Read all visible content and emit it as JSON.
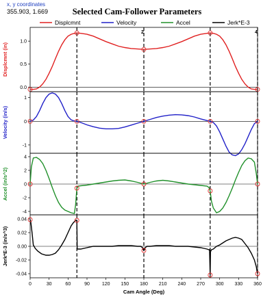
{
  "header": {
    "coord_label": "x, y coordinates",
    "coord_value": "355.903, 1.669"
  },
  "chart_data": {
    "type": "line",
    "title": "Selected Cam-Follower Parameters",
    "xlabel": "Cam Angle (Deg)",
    "xlim": [
      0,
      360
    ],
    "xticks": [
      0,
      30,
      60,
      90,
      120,
      150,
      180,
      210,
      240,
      270,
      300,
      330,
      360
    ],
    "grid": false,
    "legend_placement": "top",
    "stage_markers": [
      {
        "x": 74,
        "label": ""
      },
      {
        "x": 180,
        "label": "2"
      },
      {
        "x": 285,
        "label": ""
      },
      {
        "x": 360,
        "label": "4"
      }
    ],
    "legend": [
      {
        "name": "Displcmnt",
        "color": "#e02020"
      },
      {
        "name": "Velocity",
        "color": "#2020c8"
      },
      {
        "name": "Accel",
        "color": "#20902a"
      },
      {
        "name": "Jerk*E-3",
        "color": "#000000"
      }
    ],
    "panels": [
      {
        "ylabel": "Displcmnt (in)",
        "color": "#e02020",
        "ylim": [
          -0.1,
          1.3
        ],
        "yticks": [
          0.0,
          0.5,
          1.0
        ],
        "ytick_labels": [
          "0.0",
          "0.5",
          "1.0"
        ],
        "x": [
          0,
          5,
          10,
          15,
          20,
          25,
          30,
          35,
          40,
          45,
          50,
          55,
          60,
          65,
          70,
          74,
          80,
          90,
          100,
          110,
          120,
          130,
          140,
          150,
          160,
          170,
          180,
          190,
          200,
          210,
          220,
          230,
          240,
          250,
          260,
          270,
          280,
          285,
          290,
          295,
          300,
          305,
          310,
          315,
          320,
          325,
          330,
          335,
          340,
          345,
          350,
          355,
          360
        ],
        "y": [
          -0.05,
          -0.05,
          -0.04,
          0.0,
          0.07,
          0.17,
          0.3,
          0.45,
          0.62,
          0.78,
          0.92,
          1.03,
          1.11,
          1.15,
          1.17,
          1.18,
          1.17,
          1.15,
          1.11,
          1.05,
          0.99,
          0.94,
          0.89,
          0.86,
          0.84,
          0.83,
          0.82,
          0.83,
          0.84,
          0.86,
          0.89,
          0.94,
          0.99,
          1.05,
          1.11,
          1.15,
          1.17,
          1.18,
          1.17,
          1.15,
          1.11,
          1.03,
          0.92,
          0.78,
          0.62,
          0.45,
          0.3,
          0.17,
          0.07,
          0.0,
          -0.04,
          -0.05,
          -0.05
        ]
      },
      {
        "ylabel": "Velocity (in/s)",
        "color": "#2020c8",
        "ylim": [
          -1.35,
          1.25
        ],
        "yticks": [
          -1,
          0,
          1
        ],
        "ytick_labels": [
          "-1",
          "0",
          "1"
        ],
        "x": [
          0,
          5,
          10,
          15,
          20,
          25,
          30,
          35,
          40,
          45,
          50,
          55,
          60,
          65,
          70,
          74,
          80,
          90,
          100,
          110,
          120,
          130,
          140,
          150,
          160,
          170,
          180,
          190,
          200,
          210,
          220,
          230,
          240,
          250,
          260,
          270,
          280,
          285,
          290,
          295,
          300,
          305,
          310,
          315,
          320,
          325,
          330,
          335,
          340,
          345,
          350,
          355,
          360
        ],
        "y": [
          0.0,
          0.05,
          0.2,
          0.45,
          0.75,
          1.0,
          1.15,
          1.2,
          1.15,
          1.0,
          0.75,
          0.45,
          0.2,
          0.06,
          0.01,
          0.0,
          -0.05,
          -0.15,
          -0.23,
          -0.29,
          -0.32,
          -0.32,
          -0.3,
          -0.24,
          -0.16,
          -0.08,
          0.0,
          0.08,
          0.16,
          0.22,
          0.26,
          0.28,
          0.27,
          0.24,
          0.18,
          0.1,
          0.03,
          0.0,
          -0.05,
          -0.2,
          -0.45,
          -0.75,
          -1.05,
          -1.3,
          -1.42,
          -1.45,
          -1.38,
          -1.2,
          -0.95,
          -0.65,
          -0.35,
          -0.1,
          0.0
        ]
      },
      {
        "ylabel": "Accel (in/s^2)",
        "color": "#20902a",
        "ylim": [
          -4.5,
          4.5
        ],
        "yticks": [
          -4,
          -2,
          0,
          2,
          4
        ],
        "ytick_labels": [
          "-4",
          "-2",
          "0",
          "2",
          "4"
        ],
        "x": [
          0,
          2,
          5,
          10,
          15,
          20,
          25,
          30,
          35,
          40,
          45,
          50,
          55,
          60,
          65,
          70,
          72,
          74,
          76,
          80,
          90,
          100,
          110,
          120,
          130,
          140,
          150,
          160,
          170,
          180,
          190,
          200,
          210,
          220,
          230,
          240,
          250,
          260,
          270,
          280,
          283,
          285,
          287,
          290,
          295,
          300,
          305,
          310,
          315,
          320,
          325,
          330,
          335,
          340,
          345,
          350,
          355,
          358,
          360
        ],
        "y": [
          0.0,
          2.5,
          3.8,
          3.9,
          3.6,
          3.0,
          2.0,
          0.8,
          -0.5,
          -1.7,
          -2.7,
          -3.4,
          -3.8,
          -4.0,
          -4.2,
          -4.3,
          -3.0,
          -0.6,
          -0.3,
          -0.25,
          -0.15,
          0.0,
          0.15,
          0.3,
          0.45,
          0.55,
          0.6,
          0.45,
          0.25,
          0.0,
          0.25,
          0.45,
          0.55,
          0.45,
          0.3,
          0.15,
          0.0,
          -0.1,
          -0.2,
          -0.3,
          -0.5,
          -1.0,
          -2.5,
          -3.5,
          -4.2,
          -4.0,
          -3.5,
          -2.7,
          -1.7,
          -0.6,
          0.6,
          1.7,
          2.7,
          3.4,
          3.8,
          3.7,
          3.2,
          1.5,
          0.0
        ]
      },
      {
        "ylabel": "Jerk*E-3 (in/s^3)",
        "color": "#000000",
        "ylim": [
          -0.046,
          0.046
        ],
        "yticks": [
          -0.04,
          -0.02,
          0.0,
          0.02,
          0.04
        ],
        "ytick_labels": [
          "-0.04",
          "-0.02",
          "0.00",
          "0.02",
          "0.04"
        ],
        "x": [
          0,
          1,
          3,
          5,
          8,
          12,
          18,
          25,
          30,
          35,
          40,
          45,
          50,
          55,
          60,
          65,
          68,
          70,
          72,
          73,
          74,
          74.5,
          76,
          80,
          90,
          100,
          110,
          120,
          130,
          140,
          150,
          160,
          170,
          175,
          178,
          179,
          180,
          181,
          182,
          185,
          190,
          200,
          210,
          220,
          230,
          240,
          250,
          260,
          270,
          275,
          280,
          283,
          284,
          285,
          285.5,
          287,
          290,
          295,
          300,
          305,
          310,
          315,
          320,
          325,
          330,
          335,
          340,
          345,
          350,
          355,
          358,
          359,
          360
        ],
        "y": [
          0.039,
          0.036,
          0.02,
          0.002,
          -0.003,
          -0.007,
          -0.011,
          -0.013,
          -0.013,
          -0.012,
          -0.01,
          -0.005,
          0.002,
          0.01,
          0.02,
          0.03,
          0.034,
          0.036,
          0.038,
          0.038,
          0.038,
          -0.004,
          -0.004,
          -0.004,
          -0.002,
          0.0,
          0.0,
          0.0,
          0.0,
          0.001,
          0.001,
          0.001,
          0.0,
          0.0,
          -0.002,
          -0.005,
          -0.006,
          -0.005,
          -0.002,
          0.0,
          0.0,
          0.001,
          0.001,
          0.001,
          0.0,
          0.0,
          0.0,
          -0.001,
          -0.002,
          -0.003,
          -0.004,
          -0.005,
          -0.005,
          -0.042,
          -0.008,
          -0.005,
          -0.004,
          0.0,
          0.002,
          0.005,
          0.008,
          0.01,
          0.012,
          0.013,
          0.012,
          0.01,
          0.004,
          -0.002,
          -0.01,
          -0.02,
          -0.03,
          -0.036,
          -0.04
        ]
      }
    ]
  }
}
